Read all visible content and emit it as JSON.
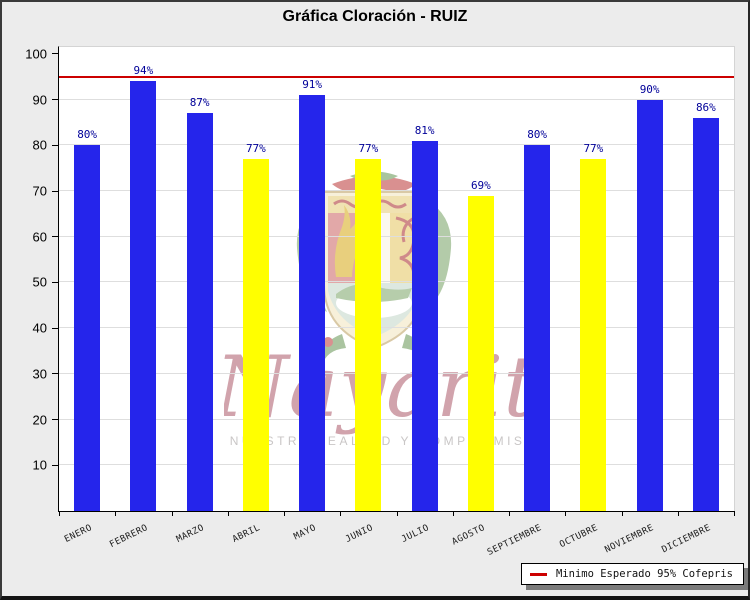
{
  "window": {
    "background": "#ECECEC",
    "frame_border": "#333333"
  },
  "chart_data": {
    "type": "bar",
    "title": "Gráfica Cloración - RUIZ",
    "categories": [
      "ENERO",
      "FEBRERO",
      "MARZO",
      "ABRIL",
      "MAYO",
      "JUNIO",
      "JULIO",
      "AGOSTO",
      "SEPTIEMBRE",
      "OCTUBRE",
      "NOVIEMBRE",
      "DICIEMBRE"
    ],
    "values": [
      80,
      94,
      87,
      77,
      91,
      77,
      81,
      69,
      80,
      77,
      90,
      86
    ],
    "value_labels": [
      "80%",
      "94%",
      "87%",
      "77%",
      "91%",
      "77%",
      "81%",
      "69%",
      "80%",
      "77%",
      "90%",
      "86%"
    ],
    "bar_colors": [
      "#2525EB",
      "#2525EB",
      "#2525EB",
      "#FFFF00",
      "#2525EB",
      "#FFFF00",
      "#2525EB",
      "#FFFF00",
      "#2525EB",
      "#FFFF00",
      "#2525EB",
      "#2525EB"
    ],
    "xlabel": "",
    "ylabel": "",
    "ylim": [
      0,
      100
    ],
    "yticks": [
      10,
      20,
      30,
      40,
      50,
      60,
      70,
      80,
      90,
      100
    ],
    "grid": "horizontal",
    "plot_background": "#FFFFFF",
    "threshold_line": {
      "value": 95,
      "color": "#CC0000",
      "label": "Minimo Esperado 95% Cofepris"
    },
    "legend": {
      "position": "bottom-right",
      "entries": [
        {
          "label": "Minimo Esperado 95% Cofepris",
          "swatch": "red-line",
          "swatch_color": "#CC0000"
        }
      ]
    },
    "colors": {
      "bar_blue": "#2525EB",
      "bar_yellow": "#FFFF00",
      "value_label_text": "#000099",
      "gridline": "#DEDEDE"
    }
  },
  "watermark": {
    "name": "nayarit-coat-of-arms",
    "script_text": "Nayarit",
    "caption": "NUESTRA LEALTAD Y COMPROMISO"
  }
}
